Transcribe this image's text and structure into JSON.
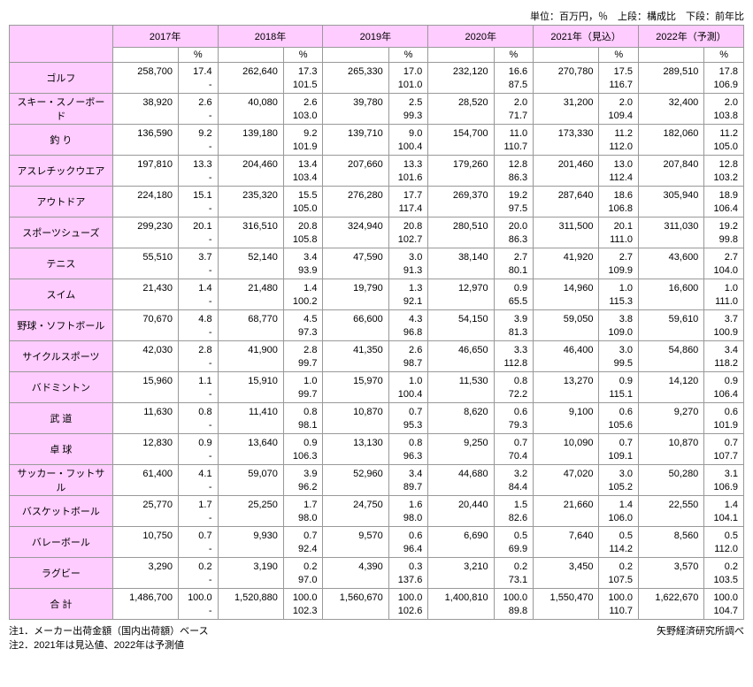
{
  "unit_line": "単位：百万円，％　上段：構成比　下段：前年比",
  "years": [
    "2017年",
    "2018年",
    "2019年",
    "2020年",
    "2021年（見込）",
    "2022年（予測）"
  ],
  "pct_label": "%",
  "rows": [
    {
      "label": "ゴルフ",
      "c": [
        {
          "v": "258,700",
          "p": "17.4",
          "y": "-"
        },
        {
          "v": "262,640",
          "p": "17.3",
          "y": "101.5"
        },
        {
          "v": "265,330",
          "p": "17.0",
          "y": "101.0"
        },
        {
          "v": "232,120",
          "p": "16.6",
          "y": "87.5"
        },
        {
          "v": "270,780",
          "p": "17.5",
          "y": "116.7"
        },
        {
          "v": "289,510",
          "p": "17.8",
          "y": "106.9"
        }
      ]
    },
    {
      "label": "スキー・スノーボード",
      "c": [
        {
          "v": "38,920",
          "p": "2.6",
          "y": "-"
        },
        {
          "v": "40,080",
          "p": "2.6",
          "y": "103.0"
        },
        {
          "v": "39,780",
          "p": "2.5",
          "y": "99.3"
        },
        {
          "v": "28,520",
          "p": "2.0",
          "y": "71.7"
        },
        {
          "v": "31,200",
          "p": "2.0",
          "y": "109.4"
        },
        {
          "v": "32,400",
          "p": "2.0",
          "y": "103.8"
        }
      ]
    },
    {
      "label": "釣 り",
      "c": [
        {
          "v": "136,590",
          "p": "9.2",
          "y": "-"
        },
        {
          "v": "139,180",
          "p": "9.2",
          "y": "101.9"
        },
        {
          "v": "139,710",
          "p": "9.0",
          "y": "100.4"
        },
        {
          "v": "154,700",
          "p": "11.0",
          "y": "110.7"
        },
        {
          "v": "173,330",
          "p": "11.2",
          "y": "112.0"
        },
        {
          "v": "182,060",
          "p": "11.2",
          "y": "105.0"
        }
      ]
    },
    {
      "label": "アスレチックウエア",
      "c": [
        {
          "v": "197,810",
          "p": "13.3",
          "y": "-"
        },
        {
          "v": "204,460",
          "p": "13.4",
          "y": "103.4"
        },
        {
          "v": "207,660",
          "p": "13.3",
          "y": "101.6"
        },
        {
          "v": "179,260",
          "p": "12.8",
          "y": "86.3"
        },
        {
          "v": "201,460",
          "p": "13.0",
          "y": "112.4"
        },
        {
          "v": "207,840",
          "p": "12.8",
          "y": "103.2"
        }
      ]
    },
    {
      "label": "アウトドア",
      "c": [
        {
          "v": "224,180",
          "p": "15.1",
          "y": "-"
        },
        {
          "v": "235,320",
          "p": "15.5",
          "y": "105.0"
        },
        {
          "v": "276,280",
          "p": "17.7",
          "y": "117.4"
        },
        {
          "v": "269,370",
          "p": "19.2",
          "y": "97.5"
        },
        {
          "v": "287,640",
          "p": "18.6",
          "y": "106.8"
        },
        {
          "v": "305,940",
          "p": "18.9",
          "y": "106.4"
        }
      ]
    },
    {
      "label": "スポーツシューズ",
      "c": [
        {
          "v": "299,230",
          "p": "20.1",
          "y": "-"
        },
        {
          "v": "316,510",
          "p": "20.8",
          "y": "105.8"
        },
        {
          "v": "324,940",
          "p": "20.8",
          "y": "102.7"
        },
        {
          "v": "280,510",
          "p": "20.0",
          "y": "86.3"
        },
        {
          "v": "311,500",
          "p": "20.1",
          "y": "111.0"
        },
        {
          "v": "311,030",
          "p": "19.2",
          "y": "99.8"
        }
      ]
    },
    {
      "label": "テニス",
      "c": [
        {
          "v": "55,510",
          "p": "3.7",
          "y": "-"
        },
        {
          "v": "52,140",
          "p": "3.4",
          "y": "93.9"
        },
        {
          "v": "47,590",
          "p": "3.0",
          "y": "91.3"
        },
        {
          "v": "38,140",
          "p": "2.7",
          "y": "80.1"
        },
        {
          "v": "41,920",
          "p": "2.7",
          "y": "109.9"
        },
        {
          "v": "43,600",
          "p": "2.7",
          "y": "104.0"
        }
      ]
    },
    {
      "label": "スイム",
      "c": [
        {
          "v": "21,430",
          "p": "1.4",
          "y": "-"
        },
        {
          "v": "21,480",
          "p": "1.4",
          "y": "100.2"
        },
        {
          "v": "19,790",
          "p": "1.3",
          "y": "92.1"
        },
        {
          "v": "12,970",
          "p": "0.9",
          "y": "65.5"
        },
        {
          "v": "14,960",
          "p": "1.0",
          "y": "115.3"
        },
        {
          "v": "16,600",
          "p": "1.0",
          "y": "111.0"
        }
      ]
    },
    {
      "label": "野球・ソフトボール",
      "c": [
        {
          "v": "70,670",
          "p": "4.8",
          "y": "-"
        },
        {
          "v": "68,770",
          "p": "4.5",
          "y": "97.3"
        },
        {
          "v": "66,600",
          "p": "4.3",
          "y": "96.8"
        },
        {
          "v": "54,150",
          "p": "3.9",
          "y": "81.3"
        },
        {
          "v": "59,050",
          "p": "3.8",
          "y": "109.0"
        },
        {
          "v": "59,610",
          "p": "3.7",
          "y": "100.9"
        }
      ]
    },
    {
      "label": "サイクルスポーツ",
      "c": [
        {
          "v": "42,030",
          "p": "2.8",
          "y": "-"
        },
        {
          "v": "41,900",
          "p": "2.8",
          "y": "99.7"
        },
        {
          "v": "41,350",
          "p": "2.6",
          "y": "98.7"
        },
        {
          "v": "46,650",
          "p": "3.3",
          "y": "112.8"
        },
        {
          "v": "46,400",
          "p": "3.0",
          "y": "99.5"
        },
        {
          "v": "54,860",
          "p": "3.4",
          "y": "118.2"
        }
      ]
    },
    {
      "label": "バドミントン",
      "c": [
        {
          "v": "15,960",
          "p": "1.1",
          "y": "-"
        },
        {
          "v": "15,910",
          "p": "1.0",
          "y": "99.7"
        },
        {
          "v": "15,970",
          "p": "1.0",
          "y": "100.4"
        },
        {
          "v": "11,530",
          "p": "0.8",
          "y": "72.2"
        },
        {
          "v": "13,270",
          "p": "0.9",
          "y": "115.1"
        },
        {
          "v": "14,120",
          "p": "0.9",
          "y": "106.4"
        }
      ]
    },
    {
      "label": "武 道",
      "c": [
        {
          "v": "11,630",
          "p": "0.8",
          "y": "-"
        },
        {
          "v": "11,410",
          "p": "0.8",
          "y": "98.1"
        },
        {
          "v": "10,870",
          "p": "0.7",
          "y": "95.3"
        },
        {
          "v": "8,620",
          "p": "0.6",
          "y": "79.3"
        },
        {
          "v": "9,100",
          "p": "0.6",
          "y": "105.6"
        },
        {
          "v": "9,270",
          "p": "0.6",
          "y": "101.9"
        }
      ]
    },
    {
      "label": "卓 球",
      "c": [
        {
          "v": "12,830",
          "p": "0.9",
          "y": "-"
        },
        {
          "v": "13,640",
          "p": "0.9",
          "y": "106.3"
        },
        {
          "v": "13,130",
          "p": "0.8",
          "y": "96.3"
        },
        {
          "v": "9,250",
          "p": "0.7",
          "y": "70.4"
        },
        {
          "v": "10,090",
          "p": "0.7",
          "y": "109.1"
        },
        {
          "v": "10,870",
          "p": "0.7",
          "y": "107.7"
        }
      ]
    },
    {
      "label": "サッカー・フットサル",
      "c": [
        {
          "v": "61,400",
          "p": "4.1",
          "y": "-"
        },
        {
          "v": "59,070",
          "p": "3.9",
          "y": "96.2"
        },
        {
          "v": "52,960",
          "p": "3.4",
          "y": "89.7"
        },
        {
          "v": "44,680",
          "p": "3.2",
          "y": "84.4"
        },
        {
          "v": "47,020",
          "p": "3.0",
          "y": "105.2"
        },
        {
          "v": "50,280",
          "p": "3.1",
          "y": "106.9"
        }
      ]
    },
    {
      "label": "バスケットボール",
      "c": [
        {
          "v": "25,770",
          "p": "1.7",
          "y": "-"
        },
        {
          "v": "25,250",
          "p": "1.7",
          "y": "98.0"
        },
        {
          "v": "24,750",
          "p": "1.6",
          "y": "98.0"
        },
        {
          "v": "20,440",
          "p": "1.5",
          "y": "82.6"
        },
        {
          "v": "21,660",
          "p": "1.4",
          "y": "106.0"
        },
        {
          "v": "22,550",
          "p": "1.4",
          "y": "104.1"
        }
      ]
    },
    {
      "label": "バレーボール",
      "c": [
        {
          "v": "10,750",
          "p": "0.7",
          "y": "-"
        },
        {
          "v": "9,930",
          "p": "0.7",
          "y": "92.4"
        },
        {
          "v": "9,570",
          "p": "0.6",
          "y": "96.4"
        },
        {
          "v": "6,690",
          "p": "0.5",
          "y": "69.9"
        },
        {
          "v": "7,640",
          "p": "0.5",
          "y": "114.2"
        },
        {
          "v": "8,560",
          "p": "0.5",
          "y": "112.0"
        }
      ]
    },
    {
      "label": "ラグビー",
      "c": [
        {
          "v": "3,290",
          "p": "0.2",
          "y": "-"
        },
        {
          "v": "3,190",
          "p": "0.2",
          "y": "97.0"
        },
        {
          "v": "4,390",
          "p": "0.3",
          "y": "137.6"
        },
        {
          "v": "3,210",
          "p": "0.2",
          "y": "73.1"
        },
        {
          "v": "3,450",
          "p": "0.2",
          "y": "107.5"
        },
        {
          "v": "3,570",
          "p": "0.2",
          "y": "103.5"
        }
      ]
    },
    {
      "label": "合 計",
      "c": [
        {
          "v": "1,486,700",
          "p": "100.0",
          "y": "-"
        },
        {
          "v": "1,520,880",
          "p": "100.0",
          "y": "102.3"
        },
        {
          "v": "1,560,670",
          "p": "100.0",
          "y": "102.6"
        },
        {
          "v": "1,400,810",
          "p": "100.0",
          "y": "89.8"
        },
        {
          "v": "1,550,470",
          "p": "100.0",
          "y": "110.7"
        },
        {
          "v": "1,622,670",
          "p": "100.0",
          "y": "104.7"
        }
      ]
    }
  ],
  "note1": "注1．メーカー出荷金額（国内出荷額）ベース",
  "note2": "注2．2021年は見込値、2022年は予測値",
  "source": "矢野経済研究所調べ"
}
